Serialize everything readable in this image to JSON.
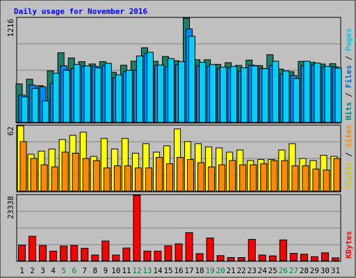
{
  "chart_data": {
    "type": "bar",
    "title": "Daily usage for November 2016",
    "categories": [
      "1",
      "2",
      "3",
      "4",
      "5",
      "6",
      "7",
      "8",
      "9",
      "10",
      "11",
      "12",
      "13",
      "14",
      "15",
      "16",
      "17",
      "18",
      "19",
      "20",
      "21",
      "22",
      "23",
      "24",
      "25",
      "26",
      "27",
      "28",
      "29",
      "30",
      "31"
    ],
    "weekend_days": [
      "5",
      "6",
      "12",
      "13",
      "19",
      "20",
      "26",
      "27"
    ],
    "panels": [
      {
        "id": "hits",
        "max_label": "1216",
        "ylim": [
          0,
          1216
        ],
        "legend": [
          {
            "text": "Hits",
            "color": "#008080"
          },
          {
            "text": " / ",
            "color": "#000000"
          },
          {
            "text": "Files",
            "color": "#0066cc"
          },
          {
            "text": " / ",
            "color": "#000000"
          },
          {
            "text": "Pages",
            "color": "#00c8e6"
          }
        ],
        "series": [
          {
            "name": "Hits",
            "color": "#1e7f66",
            "values": [
              448,
              503,
              428,
              600,
              812,
              751,
              708,
              681,
              708,
              583,
              666,
              713,
              869,
              712,
              768,
              719,
              1216,
              731,
              730,
              676,
              696,
              664,
              726,
              662,
              789,
              621,
              590,
              711,
              700,
              680,
              684
            ]
          },
          {
            "name": "Files",
            "color": "#0088ff",
            "values": [
              318,
              435,
              415,
              456,
              660,
              628,
              653,
              653,
              666,
              520,
              592,
              608,
              803,
              666,
              648,
              671,
              1089,
              656,
              653,
              630,
              640,
              600,
              666,
              629,
              663,
              561,
              546,
              663,
              669,
              646,
              646
            ]
          },
          {
            "name": "Pages",
            "color": "#00d0ff",
            "values": [
              298,
              394,
              249,
              573,
              607,
              677,
              659,
              634,
              688,
              553,
              607,
              774,
              818,
              668,
              744,
              708,
              1004,
              700,
              674,
              644,
              652,
              636,
              658,
              627,
              713,
              600,
              511,
              713,
              690,
              653,
              633
            ]
          }
        ]
      },
      {
        "id": "visits",
        "max_label": "62",
        "ylim": [
          0,
          62
        ],
        "legend": [
          {
            "text": "Visits",
            "color": "#cccc00"
          },
          {
            "text": " / ",
            "color": "#000000"
          },
          {
            "text": "Sites",
            "color": "#ff8800"
          }
        ],
        "series": [
          {
            "name": "Visits",
            "color": "#ffff00",
            "values": [
              62,
              35,
              38,
              40,
              49,
              53,
              56,
              33,
              50,
              40,
              50,
              36,
              45,
              37,
              43,
              59,
              47,
              45,
              42,
              41,
              37,
              39,
              29,
              30,
              30,
              39,
              45,
              31,
              29,
              34,
              33
            ]
          },
          {
            "name": "Sites",
            "color": "#ff8800",
            "values": [
              47,
              31,
              25,
              23,
              37,
              36,
              31,
              29,
              22,
              24,
              24,
              22,
              22,
              32,
              26,
              32,
              30,
              27,
              23,
              25,
              29,
              25,
              25,
              26,
              29,
              29,
              24,
              24,
              21,
              20,
              31
            ]
          }
        ]
      },
      {
        "id": "kbytes",
        "max_label": "23338",
        "ylim": [
          0,
          23338
        ],
        "legend": [
          {
            "text": "KBytes",
            "color": "#ff0000"
          }
        ],
        "series": [
          {
            "name": "KBytes",
            "color": "#ff0000",
            "values": [
              5500,
              8700,
              5400,
              3400,
              5200,
              5400,
              4400,
              2000,
              7000,
              2000,
              4500,
              23338,
              3400,
              3400,
              5300,
              6000,
              10000,
              2500,
              8100,
              1800,
              1100,
              1100,
              7600,
              2000,
              1700,
              7400,
              2600,
              2300,
              1400,
              2800,
              1000
            ]
          }
        ]
      }
    ]
  }
}
